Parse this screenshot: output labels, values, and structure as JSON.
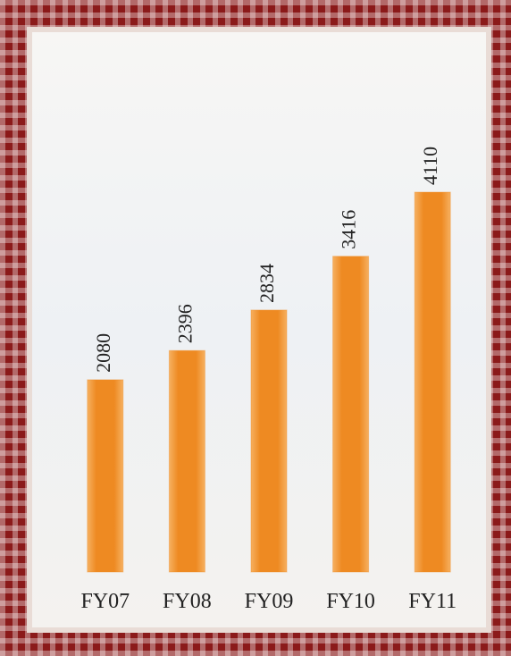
{
  "chart_data": {
    "type": "bar",
    "categories": [
      "FY07",
      "FY08",
      "FY09",
      "FY10",
      "FY11"
    ],
    "values": [
      2080,
      2396,
      2834,
      3416,
      4110
    ],
    "color": "#ee8a22"
  }
}
